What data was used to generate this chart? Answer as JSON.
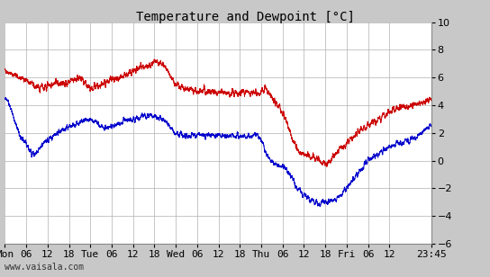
{
  "title": "Temperature and Dewpoint [°C]",
  "ylim": [
    -6,
    10
  ],
  "y_ticks": [
    -6,
    -4,
    -2,
    0,
    2,
    4,
    6,
    8,
    10
  ],
  "x_tick_labels": [
    "Mon",
    "06",
    "12",
    "18",
    "Tue",
    "06",
    "12",
    "18",
    "Wed",
    "06",
    "12",
    "18",
    "Thu",
    "06",
    "12",
    "18",
    "Fri",
    "06",
    "12",
    "23:45"
  ],
  "x_ticks_h": [
    0,
    6,
    12,
    18,
    24,
    30,
    36,
    42,
    48,
    54,
    60,
    66,
    72,
    78,
    84,
    90,
    96,
    102,
    108,
    119.75
  ],
  "total_hours": 119.75,
  "watermark": "www.vaisala.com",
  "temp_color": "#cc0000",
  "dew_color": "#0000cc",
  "bg_color": "#c8c8c8",
  "plot_bg": "#ffffff",
  "grid_color": "#b0b0b0",
  "title_fontsize": 10,
  "tick_fontsize": 8,
  "watermark_fontsize": 7,
  "temp_keypoints_h": [
    0,
    3,
    6,
    9,
    12,
    18,
    21,
    24,
    27,
    30,
    33,
    36,
    39,
    42,
    45,
    48,
    51,
    54,
    57,
    60,
    63,
    66,
    69,
    72,
    73,
    75,
    78,
    81,
    84,
    87,
    90,
    93,
    96,
    99,
    102,
    105,
    108,
    111,
    114,
    117,
    119.75
  ],
  "temp_keyvals": [
    6.5,
    6.2,
    5.8,
    5.3,
    5.5,
    5.7,
    5.9,
    5.3,
    5.5,
    5.8,
    6.0,
    6.5,
    6.8,
    7.0,
    6.8,
    5.5,
    5.2,
    5.0,
    5.0,
    5.0,
    4.9,
    4.9,
    4.9,
    5.0,
    5.2,
    4.5,
    3.5,
    1.5,
    0.5,
    0.2,
    -0.2,
    0.5,
    1.2,
    2.0,
    2.5,
    3.0,
    3.5,
    3.8,
    4.0,
    4.2,
    4.5
  ],
  "dew_keypoints_h": [
    0,
    2,
    4,
    6,
    8,
    10,
    12,
    15,
    18,
    21,
    24,
    27,
    30,
    33,
    36,
    39,
    42,
    45,
    48,
    51,
    54,
    57,
    60,
    63,
    66,
    69,
    72,
    73,
    75,
    78,
    80,
    81,
    84,
    87,
    90,
    93,
    96,
    99,
    102,
    105,
    108,
    111,
    114,
    117,
    119.75
  ],
  "dew_keyvals": [
    4.5,
    3.5,
    2.0,
    1.2,
    0.5,
    1.0,
    1.5,
    2.0,
    2.5,
    2.8,
    3.0,
    2.5,
    2.5,
    2.8,
    3.0,
    3.2,
    3.2,
    2.8,
    2.0,
    1.8,
    1.8,
    1.8,
    1.8,
    1.8,
    1.8,
    1.7,
    1.5,
    0.8,
    0.0,
    -0.5,
    -1.0,
    -1.5,
    -2.5,
    -3.0,
    -3.0,
    -2.8,
    -2.0,
    -1.0,
    0.0,
    0.5,
    1.0,
    1.2,
    1.5,
    2.0,
    2.5
  ]
}
